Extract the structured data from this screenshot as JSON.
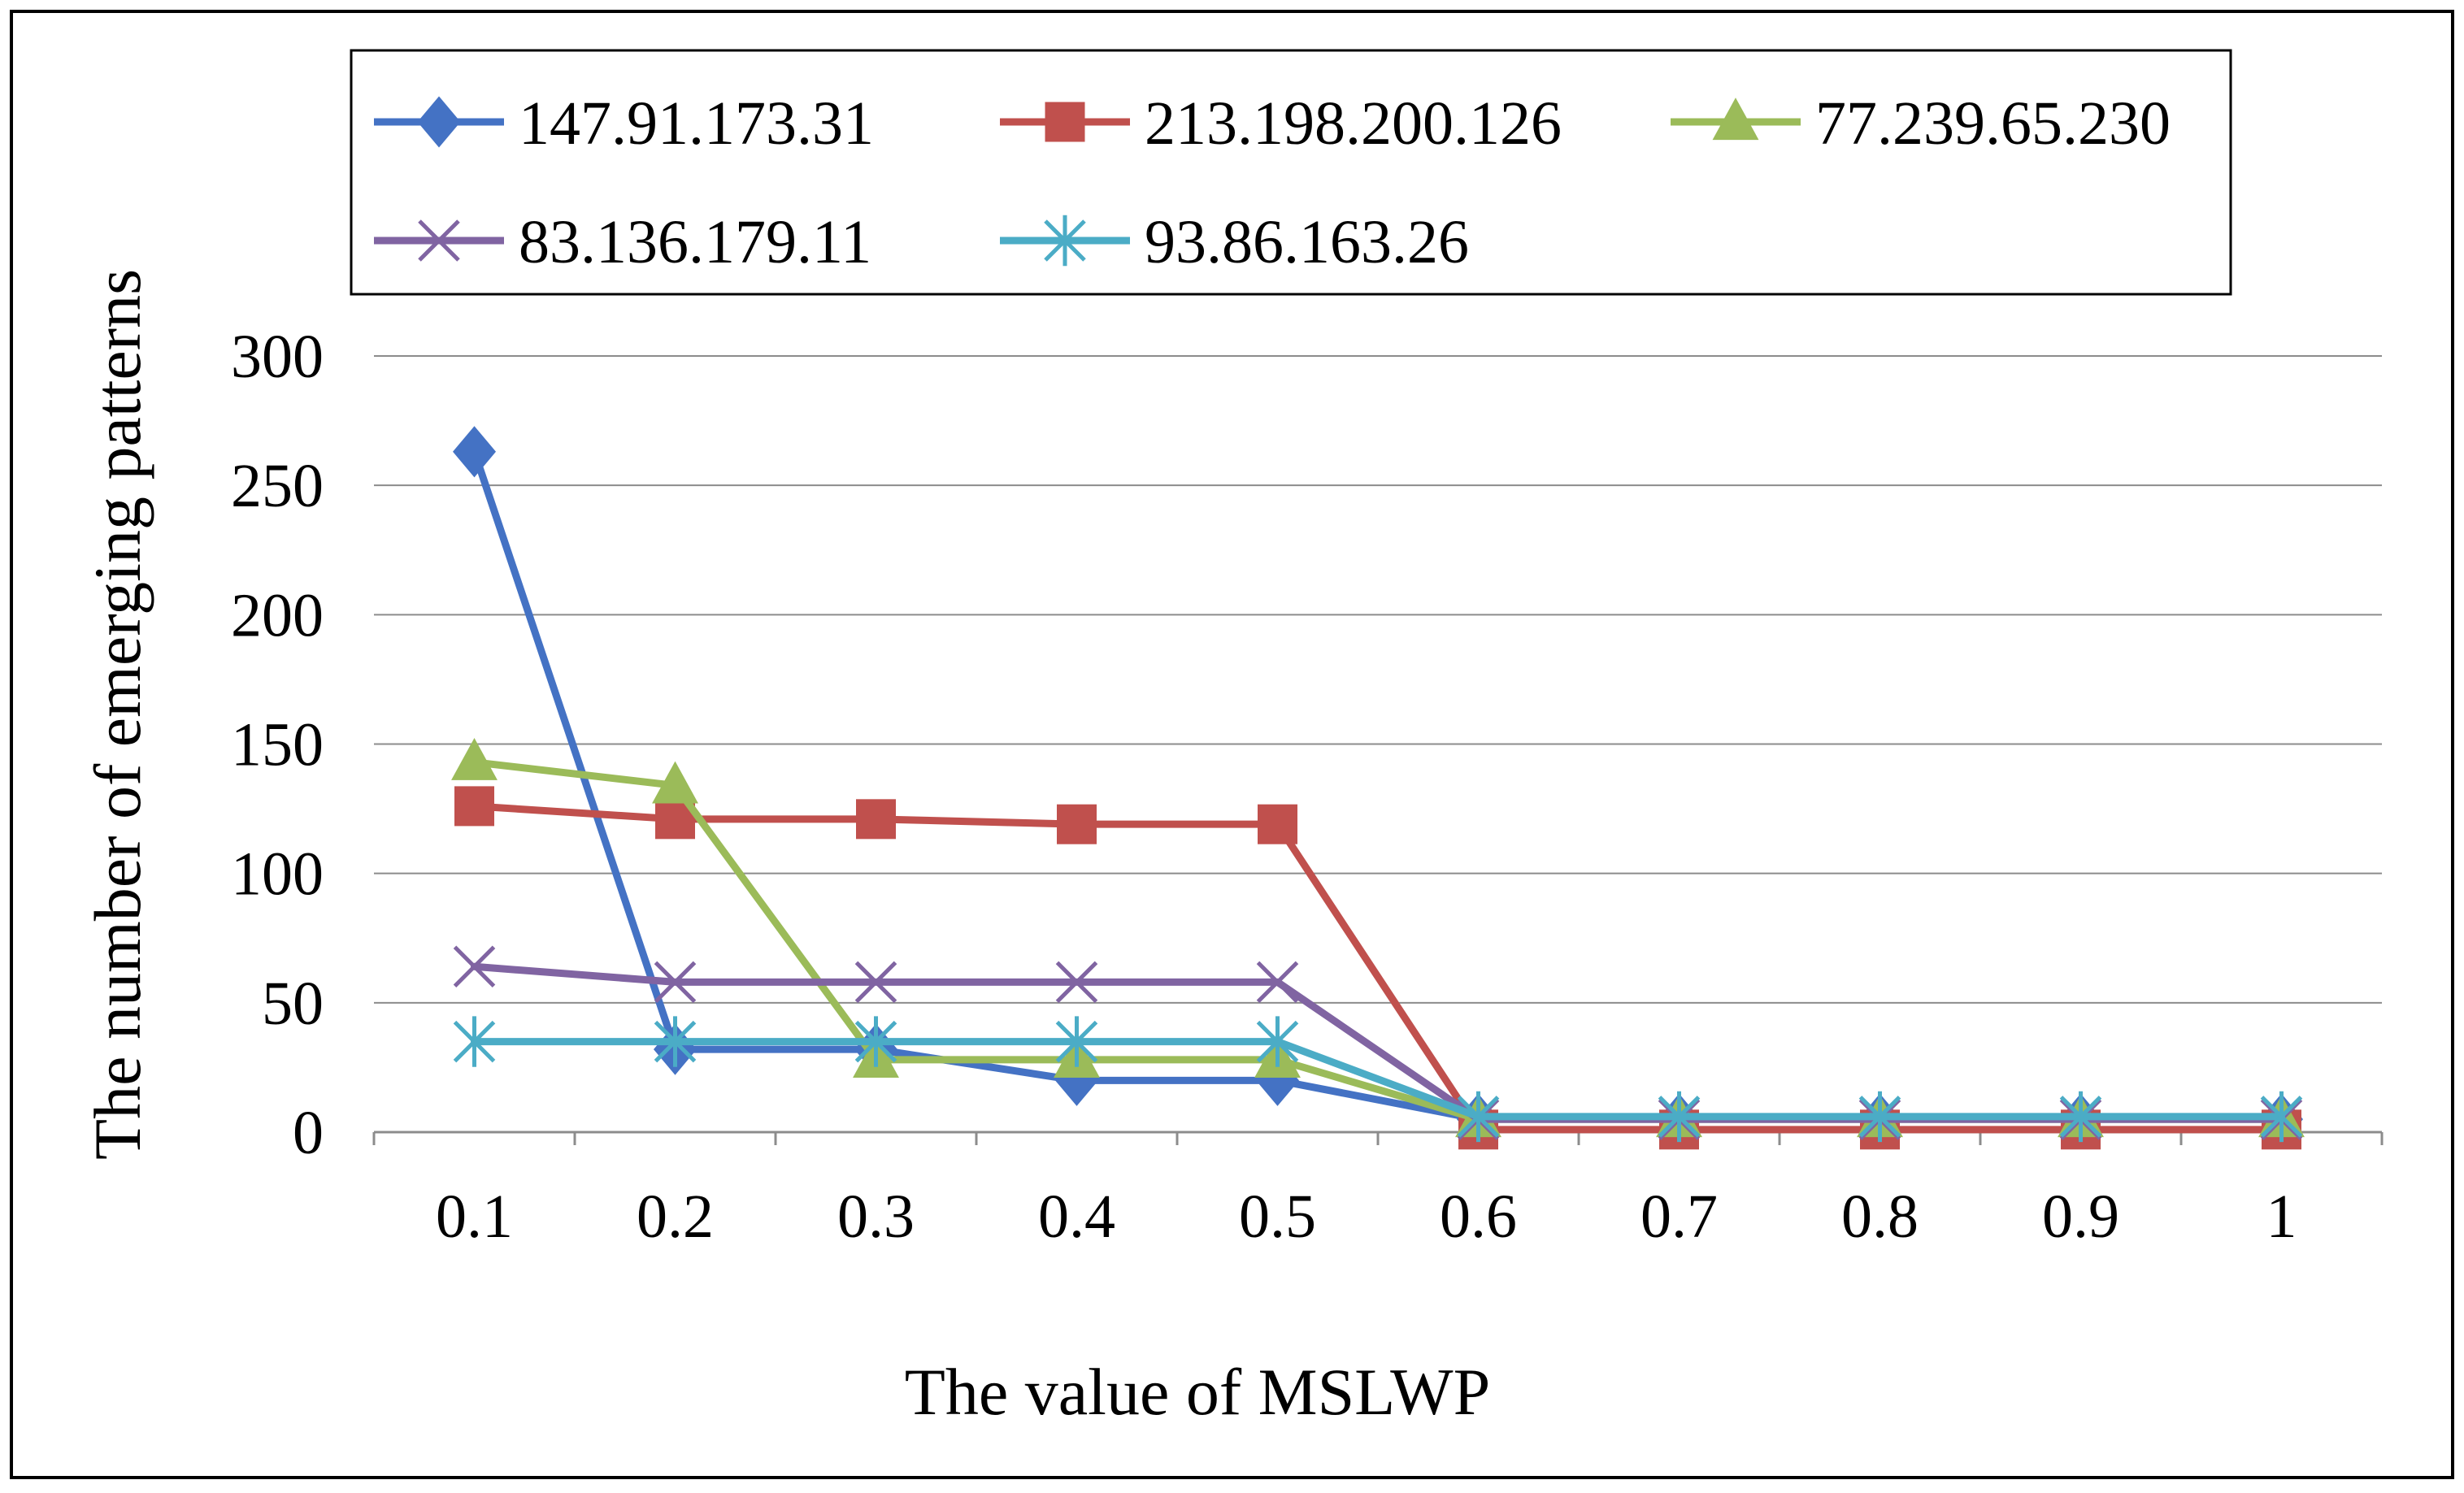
{
  "chart_data": {
    "type": "line",
    "title": "",
    "xlabel": "The value of MSLWP",
    "ylabel": "The number of emerging patterns",
    "categories": [
      "0.1",
      "0.2",
      "0.3",
      "0.4",
      "0.5",
      "0.6",
      "0.7",
      "0.8",
      "0.9",
      "1"
    ],
    "ylim": [
      0,
      300
    ],
    "yticks": [
      "0",
      "50",
      "100",
      "150",
      "200",
      "250",
      "300"
    ],
    "grid": true,
    "legend_position": "top",
    "series": [
      {
        "name": "147.91.173.31",
        "color": "#4472C4",
        "marker": "diamond",
        "values": [
          263,
          32,
          32,
          20,
          20,
          5,
          5,
          5,
          5,
          5
        ]
      },
      {
        "name": "213.198.200.126",
        "color": "#C0504D",
        "marker": "square",
        "values": [
          126,
          121,
          121,
          119,
          119,
          1,
          1,
          1,
          1,
          1
        ]
      },
      {
        "name": "77.239.65.230",
        "color": "#9BBB59",
        "marker": "triangle",
        "values": [
          143,
          134,
          28,
          28,
          28,
          5,
          5,
          5,
          5,
          5
        ]
      },
      {
        "name": "83.136.179.11",
        "color": "#8064A2",
        "marker": "x",
        "values": [
          64,
          58,
          58,
          58,
          58,
          5,
          5,
          5,
          5,
          5
        ]
      },
      {
        "name": "93.86.163.26",
        "color": "#4BACC6",
        "marker": "star",
        "values": [
          35,
          35,
          35,
          35,
          35,
          6,
          6,
          6,
          6,
          6
        ]
      }
    ]
  }
}
